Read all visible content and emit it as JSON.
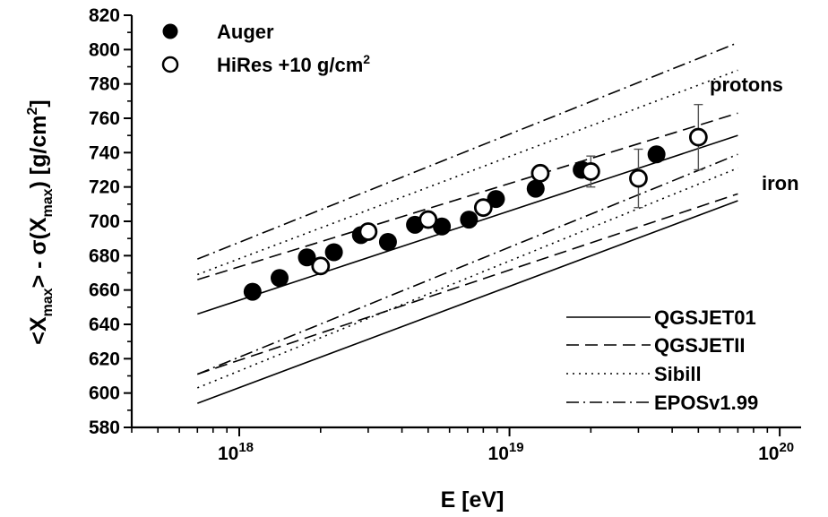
{
  "chart_data": {
    "type": "scatter",
    "title": "",
    "xlabel": "E [eV]",
    "ylabel": "<X_max> - σ(X_max) [g/cm^2]",
    "x_scale": "log",
    "xlim": [
      4e+17,
      1.2e+20
    ],
    "ylim": [
      580,
      820
    ],
    "y_ticks": [
      580,
      600,
      620,
      640,
      660,
      680,
      700,
      720,
      740,
      760,
      780,
      800,
      820
    ],
    "x_tick_labels": [
      {
        "value": 1e+18,
        "base": "10",
        "exp": "18"
      },
      {
        "value": 1e+19,
        "base": "10",
        "exp": "19"
      },
      {
        "value": 1e+20,
        "base": "10",
        "exp": "20"
      }
    ],
    "grid": false,
    "legend_placement": "top-left",
    "legend_lines_placement": "bottom-right",
    "series": [
      {
        "name": "Auger",
        "marker": "filled-circle",
        "color": "#000000",
        "points": [
          {
            "x": 1.12e+18,
            "y": 659
          },
          {
            "x": 1.41e+18,
            "y": 667
          },
          {
            "x": 1.78e+18,
            "y": 679
          },
          {
            "x": 2.24e+18,
            "y": 682
          },
          {
            "x": 2.82e+18,
            "y": 692
          },
          {
            "x": 3.55e+18,
            "y": 688
          },
          {
            "x": 4.47e+18,
            "y": 698
          },
          {
            "x": 5.62e+18,
            "y": 697
          },
          {
            "x": 7.08e+18,
            "y": 701
          },
          {
            "x": 8.91e+18,
            "y": 713
          },
          {
            "x": 1.25e+19,
            "y": 719
          },
          {
            "x": 1.85e+19,
            "y": 730
          },
          {
            "x": 3.5e+19,
            "y": 739
          }
        ]
      },
      {
        "name": "HiRes +10 g/cm²",
        "marker": "open-circle",
        "color": "#000000",
        "points": [
          {
            "x": 2e+18,
            "y": 674
          },
          {
            "x": 3e+18,
            "y": 694
          },
          {
            "x": 5e+18,
            "y": 701
          },
          {
            "x": 8e+18,
            "y": 708
          },
          {
            "x": 1.3e+19,
            "y": 728
          },
          {
            "x": 2e+19,
            "y": 729,
            "err": 9
          },
          {
            "x": 3e+19,
            "y": 725,
            "err": 17
          },
          {
            "x": 5e+19,
            "y": 749,
            "err": 19
          }
        ]
      }
    ],
    "models": [
      {
        "name": "QGSJET01",
        "dash": "",
        "proton": [
          {
            "x": 7e+17,
            "y": 646
          },
          {
            "x": 7e+19,
            "y": 750
          }
        ],
        "iron": [
          {
            "x": 7e+17,
            "y": 594
          },
          {
            "x": 7e+19,
            "y": 712
          }
        ]
      },
      {
        "name": "QGSJETII",
        "dash": "14 7",
        "proton": [
          {
            "x": 7e+17,
            "y": 666
          },
          {
            "x": 7e+19,
            "y": 763
          }
        ],
        "iron": [
          {
            "x": 7e+17,
            "y": 611
          },
          {
            "x": 7e+19,
            "y": 716
          }
        ]
      },
      {
        "name": "Sibill",
        "dash": "2 5",
        "proton": [
          {
            "x": 7e+17,
            "y": 669
          },
          {
            "x": 7e+19,
            "y": 788
          }
        ],
        "iron": [
          {
            "x": 7e+17,
            "y": 603
          },
          {
            "x": 7e+19,
            "y": 731
          }
        ]
      },
      {
        "name": "EPOSv1.99",
        "dash": "14 5 2 5",
        "proton": [
          {
            "x": 7e+17,
            "y": 678
          },
          {
            "x": 7e+19,
            "y": 804
          }
        ],
        "iron": [
          {
            "x": 7e+17,
            "y": 611
          },
          {
            "x": 7e+19,
            "y": 739
          }
        ]
      }
    ],
    "annotations": [
      "protons",
      "iron"
    ]
  }
}
